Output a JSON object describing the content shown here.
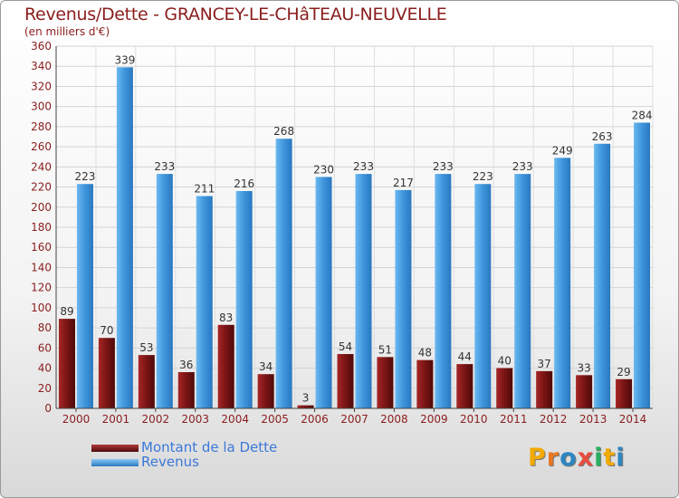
{
  "title": "Revenus/Dette - GRANCEY-LE-CHâTEAU-NEUVELLE",
  "subtitle": "(en milliers d'€)",
  "logo": {
    "text": "Proxiti",
    "letters": [
      "P",
      "r",
      "o",
      "x",
      "i",
      "t",
      "i"
    ],
    "colors": [
      "#f2a900",
      "#e87722",
      "#2e86c1",
      "#e74c3c",
      "#27ae60",
      "#f2a900",
      "#2e86c1"
    ]
  },
  "legend": {
    "debt_label": "Montant de la Dette",
    "revenue_label": "Revenus"
  },
  "colors": {
    "debt": "#7a1414",
    "revenue": "#3d95db",
    "text": "#8a1d1d",
    "legend_text": "#3b78d8"
  },
  "chart_data": {
    "type": "bar",
    "title": "Revenus/Dette - GRANCEY-LE-CHâTEAU-NEUVELLE",
    "subtitle": "(en milliers d'€)",
    "categories": [
      "2000",
      "2001",
      "2002",
      "2003",
      "2004",
      "2005",
      "2006",
      "2007",
      "2008",
      "2009",
      "2010",
      "2011",
      "2012",
      "2013",
      "2014"
    ],
    "series": [
      {
        "name": "Montant de la Dette",
        "values": [
          89,
          70,
          53,
          36,
          83,
          34,
          3,
          54,
          51,
          48,
          44,
          40,
          37,
          33,
          29
        ]
      },
      {
        "name": "Revenus",
        "values": [
          223,
          339,
          233,
          211,
          216,
          268,
          230,
          233,
          217,
          233,
          223,
          233,
          249,
          263,
          284
        ]
      }
    ],
    "ylim": [
      0,
      360
    ],
    "yticks": [
      0,
      20,
      40,
      60,
      80,
      100,
      120,
      140,
      160,
      180,
      200,
      220,
      240,
      260,
      280,
      300,
      320,
      340,
      360
    ],
    "grid": true,
    "legend_position": "bottom-left"
  }
}
